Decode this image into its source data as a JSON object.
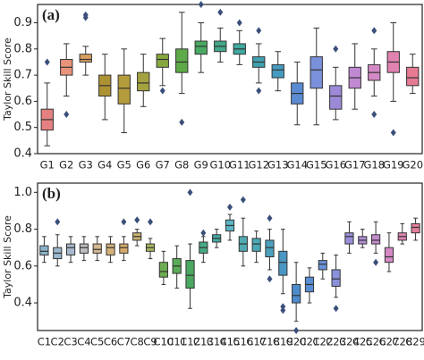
{
  "chart_data": [
    {
      "type": "box",
      "panel_label": "(a)",
      "y_label": "Taylor Skill Score",
      "categories": [
        "G1",
        "G2",
        "G3",
        "G4",
        "G5",
        "G6",
        "G7",
        "G8",
        "G9",
        "G10",
        "G11",
        "G12",
        "G13",
        "G14",
        "G15",
        "G16",
        "G17",
        "G18",
        "G19",
        "G20"
      ],
      "boxes": [
        {
          "low": 0.43,
          "q1": 0.49,
          "median": 0.53,
          "q3": 0.57,
          "high": 0.67,
          "outliers": [
            0.75
          ],
          "color": "#e58080"
        },
        {
          "low": 0.62,
          "q1": 0.7,
          "median": 0.73,
          "q3": 0.76,
          "high": 0.82,
          "outliers": [
            0.55
          ],
          "color": "#e8937a"
        },
        {
          "low": 0.7,
          "q1": 0.75,
          "median": 0.76,
          "q3": 0.78,
          "high": 0.81,
          "outliers": [
            0.93,
            0.92
          ],
          "color": "#d9a060"
        },
        {
          "low": 0.53,
          "q1": 0.62,
          "median": 0.66,
          "q3": 0.7,
          "high": 0.78,
          "outliers": [],
          "color": "#ad9234"
        },
        {
          "low": 0.48,
          "q1": 0.59,
          "median": 0.65,
          "q3": 0.7,
          "high": 0.8,
          "outliers": [],
          "color": "#b49c3c"
        },
        {
          "low": 0.58,
          "q1": 0.64,
          "median": 0.67,
          "q3": 0.71,
          "high": 0.78,
          "outliers": [],
          "color": "#a3a23e"
        },
        {
          "low": 0.66,
          "q1": 0.73,
          "median": 0.76,
          "q3": 0.78,
          "high": 0.84,
          "outliers": [
            0.64
          ],
          "color": "#88a83e"
        },
        {
          "low": 0.63,
          "q1": 0.71,
          "median": 0.75,
          "q3": 0.8,
          "high": 0.94,
          "outliers": [
            0.52
          ],
          "color": "#5eaa48"
        },
        {
          "low": 0.71,
          "q1": 0.78,
          "median": 0.81,
          "q3": 0.83,
          "high": 0.9,
          "outliers": [
            0.97
          ],
          "color": "#48aa62"
        },
        {
          "low": 0.75,
          "q1": 0.79,
          "median": 0.81,
          "q3": 0.83,
          "high": 0.88,
          "outliers": [
            0.94
          ],
          "color": "#42a88a"
        },
        {
          "low": 0.74,
          "q1": 0.78,
          "median": 0.8,
          "q3": 0.82,
          "high": 0.87,
          "outliers": [
            0.9
          ],
          "color": "#40a89e"
        },
        {
          "low": 0.67,
          "q1": 0.73,
          "median": 0.75,
          "q3": 0.77,
          "high": 0.82,
          "outliers": [
            0.87,
            0.64
          ],
          "color": "#40a2b0"
        },
        {
          "low": 0.64,
          "q1": 0.69,
          "median": 0.72,
          "q3": 0.74,
          "high": 0.79,
          "outliers": [],
          "color": "#469ac0"
        },
        {
          "low": 0.51,
          "q1": 0.59,
          "median": 0.63,
          "q3": 0.67,
          "high": 0.75,
          "outliers": [],
          "color": "#5a8bd2"
        },
        {
          "low": 0.51,
          "q1": 0.65,
          "median": 0.72,
          "q3": 0.77,
          "high": 0.88,
          "outliers": [],
          "color": "#7a90da"
        },
        {
          "low": 0.53,
          "q1": 0.57,
          "median": 0.62,
          "q3": 0.66,
          "high": 0.73,
          "outliers": [
            0.8
          ],
          "color": "#9c8ad8"
        },
        {
          "low": 0.57,
          "q1": 0.65,
          "median": 0.69,
          "q3": 0.73,
          "high": 0.82,
          "outliers": [],
          "color": "#c189d2"
        },
        {
          "low": 0.62,
          "q1": 0.68,
          "median": 0.71,
          "q3": 0.74,
          "high": 0.8,
          "outliers": [
            0.55,
            0.87
          ],
          "color": "#d489c6"
        },
        {
          "low": 0.6,
          "q1": 0.71,
          "median": 0.75,
          "q3": 0.79,
          "high": 0.9,
          "outliers": [
            0.48
          ],
          "color": "#e182b0"
        },
        {
          "low": 0.63,
          "q1": 0.66,
          "median": 0.69,
          "q3": 0.73,
          "high": 0.78,
          "outliers": [],
          "color": "#e57a92"
        }
      ],
      "ylim": [
        0.4,
        0.97
      ],
      "yticks": [
        0.4,
        0.5,
        0.6,
        0.7,
        0.8,
        0.9
      ]
    },
    {
      "type": "box",
      "panel_label": "(b)",
      "y_label": "Taylor Skill Score",
      "categories": [
        "C1",
        "C2",
        "C3",
        "C4",
        "C5",
        "C6",
        "C7",
        "C8",
        "C9",
        "C10",
        "C11",
        "C12",
        "C13",
        "C14",
        "C15",
        "C16",
        "C17",
        "C18",
        "C19",
        "C20",
        "C21",
        "C22",
        "C23",
        "C24",
        "C25",
        "C26",
        "C27",
        "C28",
        "C29"
      ],
      "boxes": [
        {
          "low": 0.62,
          "q1": 0.66,
          "median": 0.68,
          "q3": 0.71,
          "high": 0.76,
          "outliers": [],
          "color": "#8ab4cc"
        },
        {
          "low": 0.6,
          "q1": 0.64,
          "median": 0.67,
          "q3": 0.7,
          "high": 0.77,
          "outliers": [
            0.84
          ],
          "color": "#9bb8d0"
        },
        {
          "low": 0.62,
          "q1": 0.66,
          "median": 0.7,
          "q3": 0.72,
          "high": 0.76,
          "outliers": [],
          "color": "#a8b8cc"
        },
        {
          "low": 0.63,
          "q1": 0.67,
          "median": 0.7,
          "q3": 0.72,
          "high": 0.76,
          "outliers": [],
          "color": "#bdbcc0"
        },
        {
          "low": 0.63,
          "q1": 0.67,
          "median": 0.69,
          "q3": 0.72,
          "high": 0.76,
          "outliers": [],
          "color": "#d2b890"
        },
        {
          "low": 0.62,
          "q1": 0.66,
          "median": 0.7,
          "q3": 0.72,
          "high": 0.76,
          "outliers": [],
          "color": "#d6b07a"
        },
        {
          "low": 0.63,
          "q1": 0.67,
          "median": 0.7,
          "q3": 0.72,
          "high": 0.76,
          "outliers": [
            0.84
          ],
          "color": "#d4aa6c"
        },
        {
          "low": 0.71,
          "q1": 0.74,
          "median": 0.76,
          "q3": 0.78,
          "high": 0.8,
          "outliers": [
            0.85
          ],
          "color": "#c8b070"
        },
        {
          "low": 0.64,
          "q1": 0.68,
          "median": 0.7,
          "q3": 0.72,
          "high": 0.75,
          "outliers": [
            0.84
          ],
          "color": "#a8b860"
        },
        {
          "low": 0.5,
          "q1": 0.54,
          "median": 0.57,
          "q3": 0.62,
          "high": 0.68,
          "outliers": [],
          "color": "#6cae50"
        },
        {
          "low": 0.48,
          "q1": 0.56,
          "median": 0.6,
          "q3": 0.64,
          "high": 0.71,
          "outliers": [],
          "color": "#5aac58"
        },
        {
          "low": 0.37,
          "q1": 0.48,
          "median": 0.55,
          "q3": 0.63,
          "high": 0.72,
          "outliers": [
            1.0
          ],
          "color": "#4aa860"
        },
        {
          "low": 0.62,
          "q1": 0.67,
          "median": 0.7,
          "q3": 0.73,
          "high": 0.76,
          "outliers": [
            0.78
          ],
          "color": "#48aa84"
        },
        {
          "low": 0.7,
          "q1": 0.73,
          "median": 0.75,
          "q3": 0.77,
          "high": 0.8,
          "outliers": [],
          "color": "#44aaa0"
        },
        {
          "low": 0.74,
          "q1": 0.79,
          "median": 0.82,
          "q3": 0.85,
          "high": 0.88,
          "outliers": [
            0.92
          ],
          "color": "#5cb4c4"
        },
        {
          "low": 0.6,
          "q1": 0.68,
          "median": 0.72,
          "q3": 0.76,
          "high": 0.86,
          "outliers": [
            0.96
          ],
          "color": "#52aab2"
        },
        {
          "low": 0.62,
          "q1": 0.68,
          "median": 0.72,
          "q3": 0.75,
          "high": 0.79,
          "outliers": [],
          "color": "#4ca8b6"
        },
        {
          "low": 0.58,
          "q1": 0.65,
          "median": 0.7,
          "q3": 0.74,
          "high": 0.8,
          "outliers": [
            0.86,
            0.53
          ],
          "color": "#4aa0bc"
        },
        {
          "low": 0.45,
          "q1": 0.55,
          "median": 0.62,
          "q3": 0.68,
          "high": 0.8,
          "outliers": [
            0.38,
            0.36
          ],
          "color": "#4a96c4"
        },
        {
          "low": 0.3,
          "q1": 0.4,
          "median": 0.44,
          "q3": 0.5,
          "high": 0.62,
          "outliers": [
            0.25
          ],
          "color": "#4c8ccc"
        },
        {
          "low": 0.4,
          "q1": 0.46,
          "median": 0.5,
          "q3": 0.54,
          "high": 0.59,
          "outliers": [],
          "color": "#5a8ed4"
        },
        {
          "low": 0.53,
          "q1": 0.58,
          "median": 0.61,
          "q3": 0.63,
          "high": 0.67,
          "outliers": [],
          "color": "#6a92d8"
        },
        {
          "low": 0.43,
          "q1": 0.49,
          "median": 0.53,
          "q3": 0.58,
          "high": 0.66,
          "outliers": [
            0.37
          ],
          "color": "#8a90da"
        },
        {
          "low": 0.67,
          "q1": 0.72,
          "median": 0.76,
          "q3": 0.78,
          "high": 0.84,
          "outliers": [],
          "color": "#9a8ed8"
        },
        {
          "low": 0.7,
          "q1": 0.72,
          "median": 0.74,
          "q3": 0.76,
          "high": 0.8,
          "outliers": [],
          "color": "#b08cd4"
        },
        {
          "low": 0.67,
          "q1": 0.72,
          "median": 0.74,
          "q3": 0.77,
          "high": 0.84,
          "outliers": [
            0.62
          ],
          "color": "#c48ace"
        },
        {
          "low": 0.57,
          "q1": 0.62,
          "median": 0.65,
          "q3": 0.7,
          "high": 0.78,
          "outliers": [],
          "color": "#d488c4"
        },
        {
          "low": 0.72,
          "q1": 0.74,
          "median": 0.76,
          "q3": 0.78,
          "high": 0.83,
          "outliers": [],
          "color": "#de84b4"
        },
        {
          "low": 0.74,
          "q1": 0.78,
          "median": 0.81,
          "q3": 0.83,
          "high": 0.86,
          "outliers": [],
          "color": "#e47e9c"
        }
      ],
      "ylim": [
        0.25,
        1.05
      ],
      "yticks": [
        0.4,
        0.6,
        0.8,
        {
          "value": 1.0,
          "label": "1.0"
        }
      ]
    }
  ]
}
